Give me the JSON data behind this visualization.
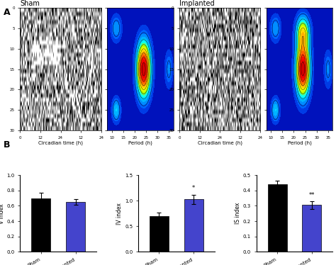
{
  "title_A": "A",
  "title_B": "B",
  "sham_label": "Sham",
  "implanted_label": "Implanted",
  "bar_charts": [
    {
      "ylabel": "V index",
      "ylim": [
        0.0,
        1.0
      ],
      "yticks": [
        0.0,
        0.2,
        0.4,
        0.6,
        0.8,
        1.0
      ],
      "sham_val": 0.7,
      "sham_err": 0.07,
      "implanted_val": 0.65,
      "implanted_err": 0.04,
      "sig_label": ""
    },
    {
      "ylabel": "IV index",
      "ylim": [
        0.0,
        1.5
      ],
      "yticks": [
        0.0,
        0.5,
        1.0,
        1.5
      ],
      "sham_val": 0.7,
      "sham_err": 0.07,
      "implanted_val": 1.03,
      "implanted_err": 0.09,
      "sig_label": "*"
    },
    {
      "ylabel": "IS index",
      "ylim": [
        0.0,
        0.5
      ],
      "yticks": [
        0.0,
        0.1,
        0.2,
        0.3,
        0.4,
        0.5
      ],
      "sham_val": 0.44,
      "sham_err": 0.025,
      "implanted_val": 0.305,
      "implanted_err": 0.025,
      "sig_label": "**"
    }
  ],
  "bar_color_sham": "#000000",
  "bar_color_implanted": "#4444cc",
  "actogram_labels": {
    "xlabel": "Circadian time (h)",
    "xticks_actogram": [
      0,
      12,
      24,
      12,
      24
    ],
    "xtick_labels_actogram": [
      "0",
      "12",
      "24",
      "12",
      "24"
    ],
    "xlabel_period": "Period (h)",
    "xticks_period": [
      10,
      15,
      20,
      25,
      30,
      35
    ]
  },
  "background_color": "#ffffff"
}
